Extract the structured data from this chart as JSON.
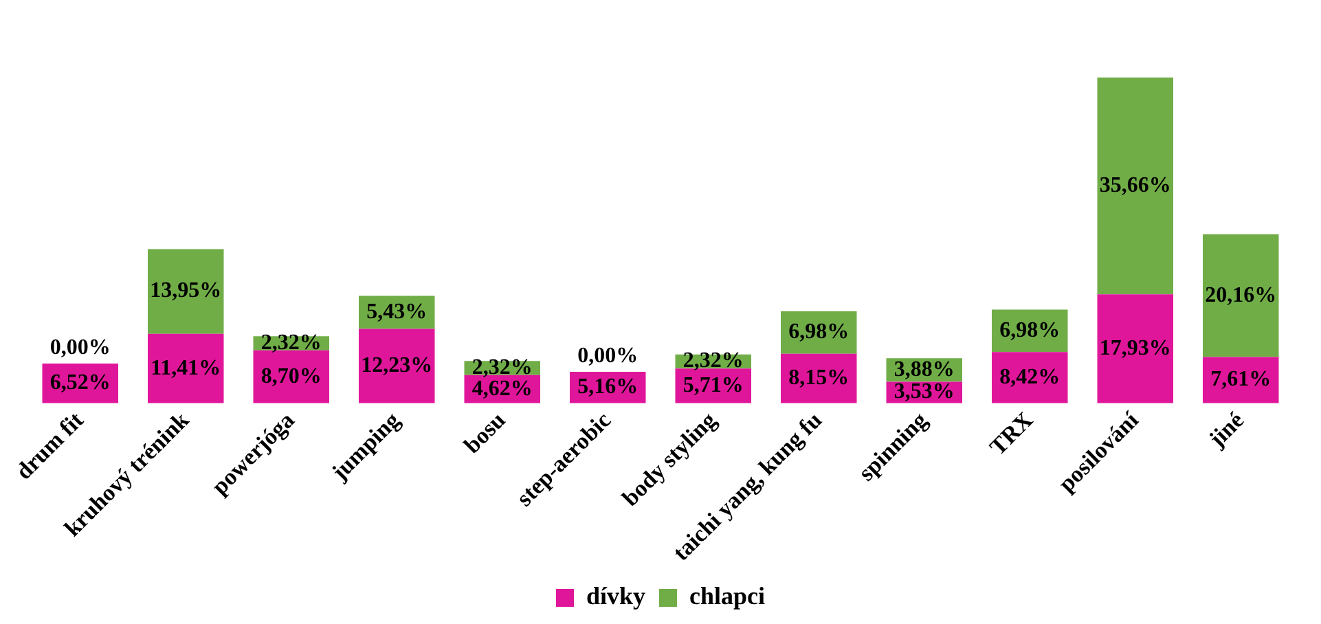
{
  "chart_data": {
    "type": "bar",
    "stacked": true,
    "legend": "bottom",
    "grid": false,
    "categories": [
      "drum fit",
      "kruhový trénink",
      "powerjóga",
      "jumping",
      "bosu",
      "step-aerobic",
      "body styling",
      "taichi yang, kung fu",
      "spinning",
      "TRX",
      "posilování",
      "jiné"
    ],
    "series": [
      {
        "name": "dívky",
        "color": "#e0169a",
        "values": [
          6.52,
          11.41,
          8.7,
          12.23,
          4.62,
          5.16,
          5.71,
          8.15,
          3.53,
          8.42,
          17.93,
          7.61
        ],
        "value_labels": [
          "6,52%",
          "11,41%",
          "8,70%",
          "12,23%",
          "4,62%",
          "5,16%",
          "5,71%",
          "8,15%",
          "3,53%",
          "8,42%",
          "17,93%",
          "7,61%"
        ]
      },
      {
        "name": "chlapci",
        "color": "#70ad47",
        "values": [
          0.0,
          13.95,
          2.32,
          5.43,
          2.32,
          0.0,
          2.32,
          6.98,
          3.88,
          6.98,
          35.66,
          20.16
        ],
        "value_labels": [
          "0,00%",
          "13,95%",
          "2,32%",
          "5,43%",
          "2,32%",
          "0,00%",
          "2,32%",
          "6,98%",
          "3,88%",
          "6,98%",
          "35,66%",
          "20,16%"
        ]
      }
    ]
  }
}
